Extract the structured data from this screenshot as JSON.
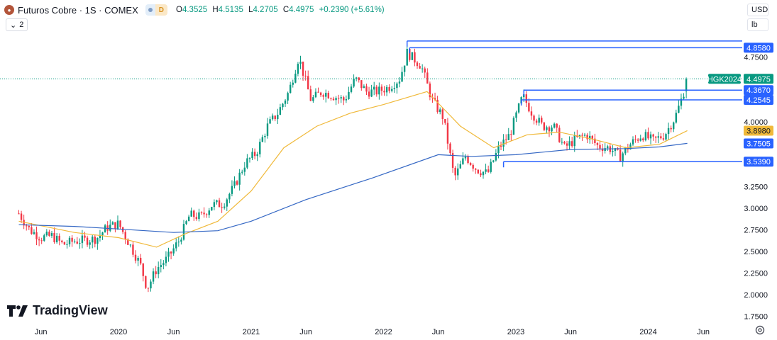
{
  "header": {
    "symbol": "Futuros Cobre · 1S · COMEX",
    "interval_badge": "D",
    "open_label": "O",
    "open": "4.3525",
    "high_label": "H",
    "high": "4.5135",
    "low_label": "L",
    "low": "4.2705",
    "close_label": "C",
    "close": "4.4975",
    "change": "+0.2390 (+5.61%)",
    "indicator_count": "2"
  },
  "currency": "USD",
  "unit": "lb",
  "brand": "TradingView",
  "chart_data": {
    "type": "candlestick",
    "y_ticks": [
      "1.7500",
      "2.0000",
      "2.2500",
      "2.5000",
      "2.7500",
      "3.0000",
      "3.2500",
      "4.0000",
      "4.7500"
    ],
    "x_ticks": [
      "Jun",
      "2020",
      "Jun",
      "2021",
      "Jun",
      "2022",
      "Jun",
      "2023",
      "Jun",
      "2024",
      "Jun"
    ],
    "ylim": [
      1.65,
      5.0
    ],
    "current_price": 4.4975,
    "current_label": "HGK2024",
    "price_tags": [
      {
        "value": "4.8580",
        "kind": "line"
      },
      {
        "value": "4.3670",
        "kind": "line"
      },
      {
        "value": "4.2545",
        "kind": "line"
      },
      {
        "value": "3.8980",
        "kind": "ma"
      },
      {
        "value": "3.7505",
        "kind": "line"
      },
      {
        "value": "3.5390",
        "kind": "line"
      }
    ],
    "horizontal_levels": [
      {
        "price": 4.858,
        "from": "2022-03-14"
      },
      {
        "price": 4.367,
        "from": "2023-01-23"
      },
      {
        "price": 4.2545,
        "from": "2023-01-16"
      },
      {
        "price": 3.539,
        "from": "2022-11-28"
      },
      {
        "price": 4.9355,
        "from": "2022-03-07"
      }
    ],
    "anchor_points": [
      [
        "2019-04-01",
        2.94
      ],
      [
        "2019-05-01",
        2.75
      ],
      [
        "2019-06-01",
        2.66
      ],
      [
        "2019-07-01",
        2.68
      ],
      [
        "2019-08-01",
        2.58
      ],
      [
        "2019-09-01",
        2.62
      ],
      [
        "2019-10-01",
        2.63
      ],
      [
        "2019-11-01",
        2.65
      ],
      [
        "2019-12-01",
        2.78
      ],
      [
        "2020-01-01",
        2.82
      ],
      [
        "2020-02-01",
        2.58
      ],
      [
        "2020-03-01",
        2.35
      ],
      [
        "2020-03-20",
        2.07
      ],
      [
        "2020-04-15",
        2.3
      ],
      [
        "2020-05-15",
        2.42
      ],
      [
        "2020-06-15",
        2.62
      ],
      [
        "2020-07-15",
        2.92
      ],
      [
        "2020-08-15",
        2.9
      ],
      [
        "2020-09-15",
        3.04
      ],
      [
        "2020-10-15",
        3.05
      ],
      [
        "2020-11-15",
        3.25
      ],
      [
        "2020-12-15",
        3.52
      ],
      [
        "2021-01-15",
        3.64
      ],
      [
        "2021-02-15",
        3.95
      ],
      [
        "2021-03-15",
        4.1
      ],
      [
        "2021-04-15",
        4.35
      ],
      [
        "2021-05-12",
        4.75
      ],
      [
        "2021-06-15",
        4.25
      ],
      [
        "2021-07-15",
        4.35
      ],
      [
        "2021-08-15",
        4.3
      ],
      [
        "2021-09-15",
        4.25
      ],
      [
        "2021-10-15",
        4.5
      ],
      [
        "2021-11-15",
        4.35
      ],
      [
        "2021-12-15",
        4.35
      ],
      [
        "2022-01-15",
        4.4
      ],
      [
        "2022-02-15",
        4.5
      ],
      [
        "2022-03-07",
        4.8
      ],
      [
        "2022-04-15",
        4.65
      ],
      [
        "2022-05-15",
        4.25
      ],
      [
        "2022-06-15",
        4.05
      ],
      [
        "2022-07-15",
        3.35
      ],
      [
        "2022-08-15",
        3.6
      ],
      [
        "2022-09-15",
        3.45
      ],
      [
        "2022-10-15",
        3.4
      ],
      [
        "2022-11-15",
        3.7
      ],
      [
        "2022-12-15",
        3.85
      ],
      [
        "2023-01-20",
        4.3
      ],
      [
        "2023-02-15",
        4.1
      ],
      [
        "2023-03-15",
        3.95
      ],
      [
        "2023-04-15",
        3.95
      ],
      [
        "2023-05-15",
        3.7
      ],
      [
        "2023-06-15",
        3.8
      ],
      [
        "2023-07-15",
        3.85
      ],
      [
        "2023-08-15",
        3.72
      ],
      [
        "2023-09-15",
        3.7
      ],
      [
        "2023-10-15",
        3.6
      ],
      [
        "2023-11-15",
        3.75
      ],
      [
        "2023-12-15",
        3.85
      ],
      [
        "2024-01-15",
        3.78
      ],
      [
        "2024-02-15",
        3.85
      ],
      [
        "2024-03-15",
        4.05
      ],
      [
        "2024-04-05",
        4.3
      ],
      [
        "2024-04-18",
        4.5
      ]
    ],
    "moving_averages": [
      {
        "color": "#f0b93a",
        "points": [
          [
            "2019-04-01",
            2.85
          ],
          [
            "2019-09-01",
            2.72
          ],
          [
            "2020-01-01",
            2.66
          ],
          [
            "2020-04-15",
            2.55
          ],
          [
            "2020-07-01",
            2.7
          ],
          [
            "2020-10-01",
            2.85
          ],
          [
            "2021-01-01",
            3.2
          ],
          [
            "2021-04-01",
            3.7
          ],
          [
            "2021-07-01",
            3.95
          ],
          [
            "2021-10-01",
            4.1
          ],
          [
            "2022-01-01",
            4.2
          ],
          [
            "2022-05-01",
            4.35
          ],
          [
            "2022-08-01",
            3.95
          ],
          [
            "2022-11-01",
            3.7
          ],
          [
            "2023-02-01",
            3.85
          ],
          [
            "2023-05-01",
            3.88
          ],
          [
            "2023-08-01",
            3.8
          ],
          [
            "2023-11-01",
            3.7
          ],
          [
            "2024-02-01",
            3.74
          ],
          [
            "2024-04-18",
            3.898
          ]
        ]
      },
      {
        "color": "#3467c4",
        "points": [
          [
            "2019-04-01",
            2.81
          ],
          [
            "2019-09-01",
            2.79
          ],
          [
            "2020-01-01",
            2.76
          ],
          [
            "2020-06-01",
            2.72
          ],
          [
            "2020-10-01",
            2.74
          ],
          [
            "2021-01-01",
            2.85
          ],
          [
            "2021-06-01",
            3.1
          ],
          [
            "2021-12-01",
            3.35
          ],
          [
            "2022-06-01",
            3.62
          ],
          [
            "2022-09-01",
            3.6
          ],
          [
            "2023-01-01",
            3.62
          ],
          [
            "2023-06-01",
            3.68
          ],
          [
            "2023-11-01",
            3.69
          ],
          [
            "2024-02-01",
            3.71
          ],
          [
            "2024-04-18",
            3.7505
          ]
        ]
      }
    ]
  }
}
